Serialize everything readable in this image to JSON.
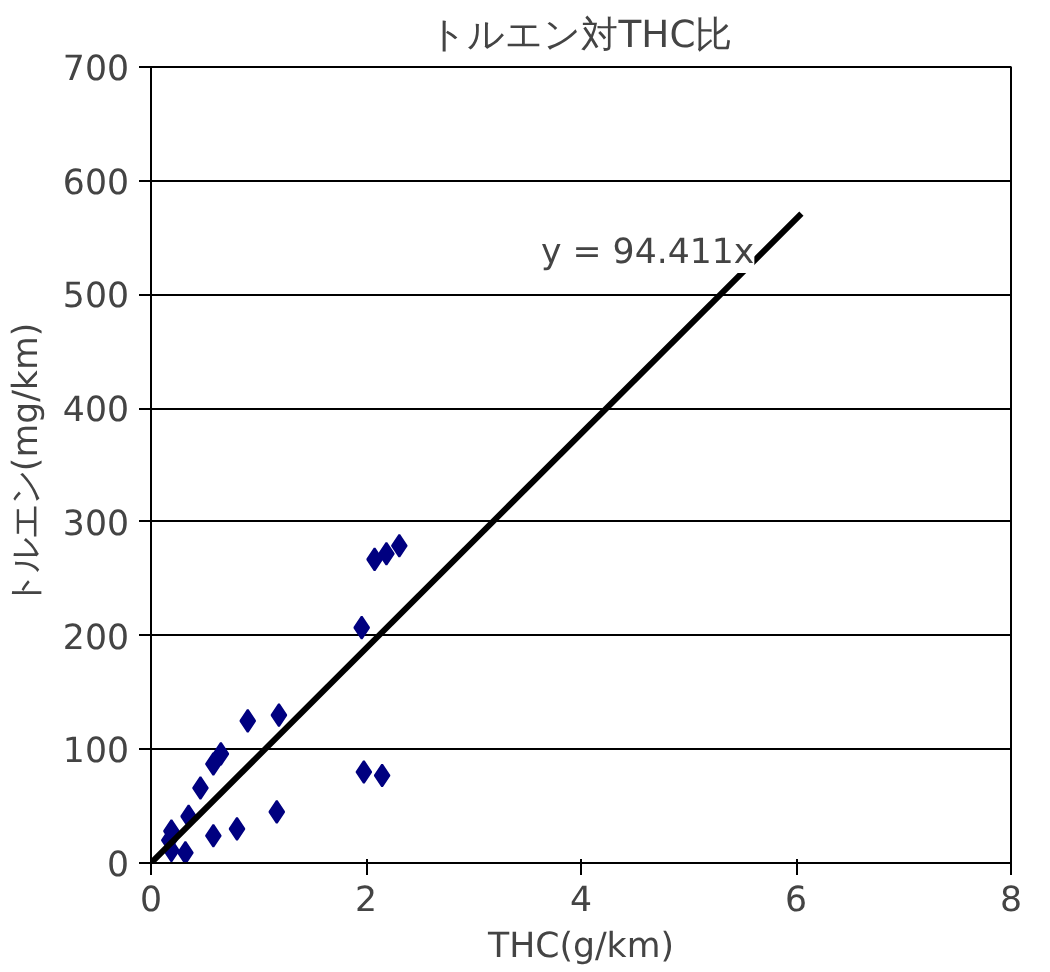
{
  "chart_data": {
    "type": "scatter",
    "title": "トルエン対THC比",
    "xlabel": "THC(g/km)",
    "ylabel": "トルエン(mg/km)",
    "xlim": [
      0,
      8
    ],
    "xticks": [
      0,
      2,
      4,
      6,
      8
    ],
    "ylim": [
      0,
      700
    ],
    "yticks": [
      0,
      100,
      200,
      300,
      400,
      500,
      600,
      700
    ],
    "grid": "y",
    "annotations": [
      "y = 94.411x"
    ],
    "series": [
      {
        "color": "#000080",
        "marker": "diamond",
        "x": [
          0.17,
          0.19,
          0.32,
          0.19,
          0.35,
          0.46,
          0.58,
          0.65,
          0.9,
          1.19,
          0.58,
          0.8,
          1.17,
          1.96,
          1.98,
          2.15,
          2.08,
          2.19,
          2.31
        ],
        "values": [
          20,
          11,
          9,
          28,
          41,
          66,
          87,
          96,
          125,
          130,
          24,
          30,
          45,
          207,
          80,
          77,
          267,
          272,
          279
        ]
      },
      {
        "type": "line",
        "color": "#000000",
        "marker": "none",
        "x": [
          0,
          6.05
        ],
        "values": [
          0,
          571
        ]
      }
    ]
  }
}
